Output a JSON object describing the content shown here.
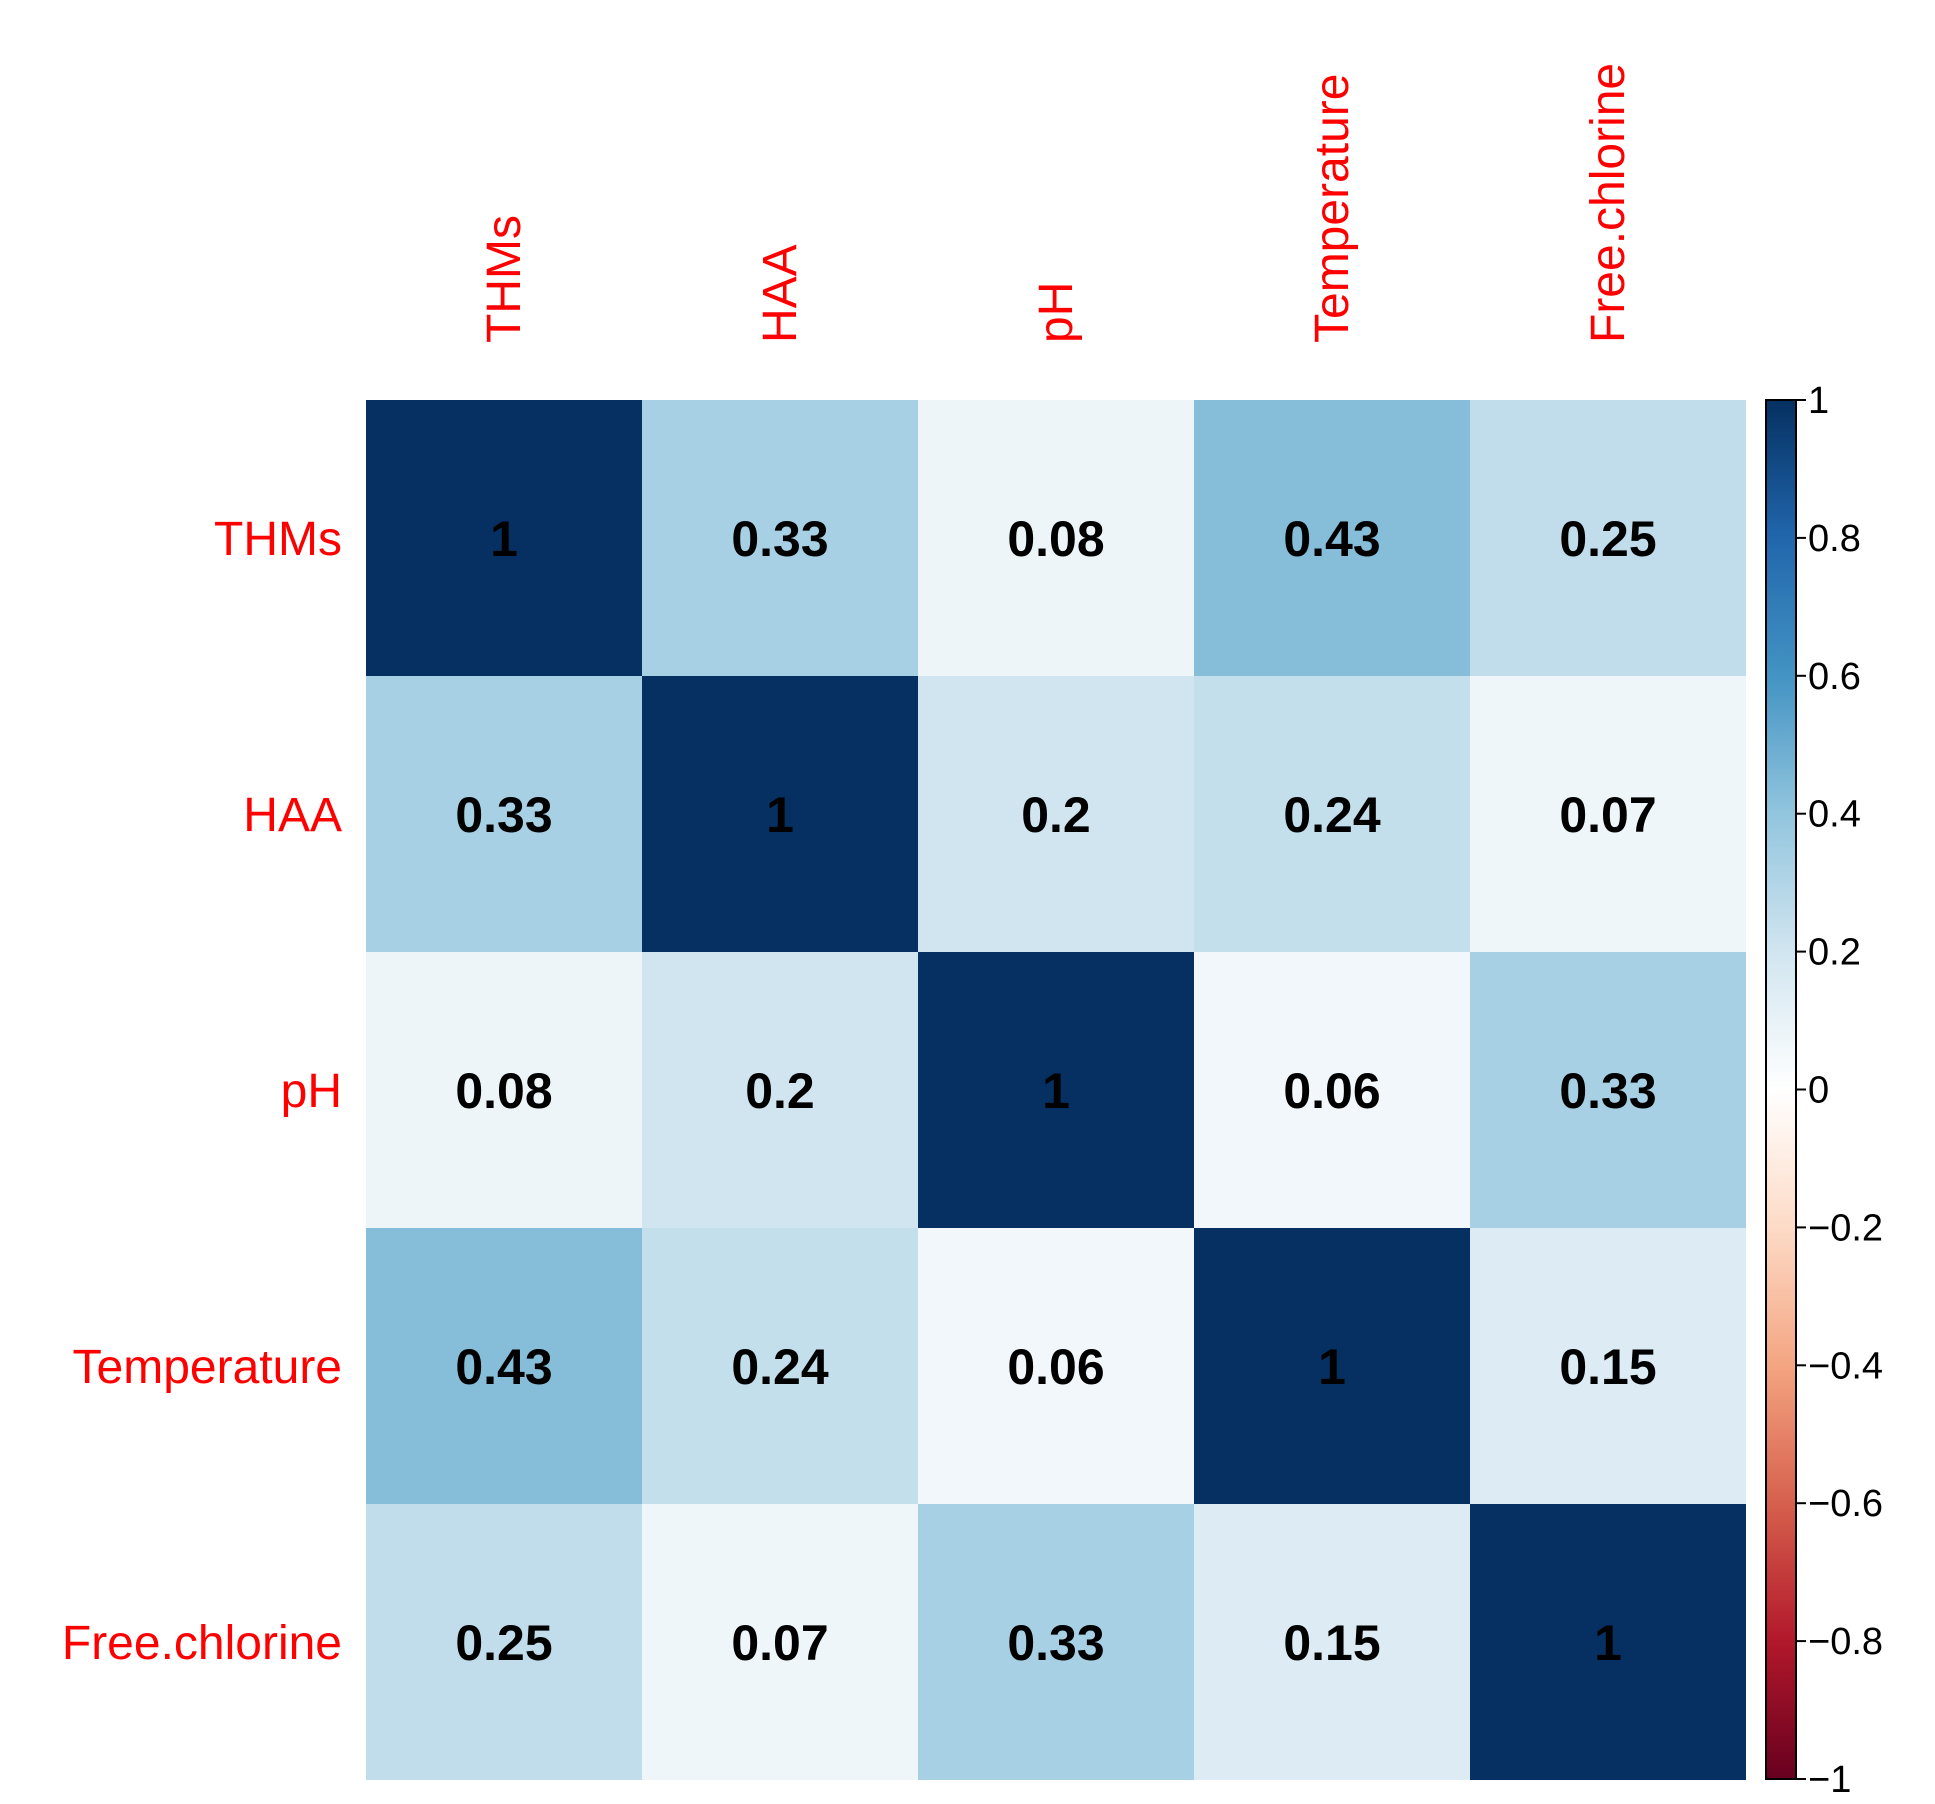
{
  "colors": {
    "label_text": "#FF0000",
    "cell_text": "#000000",
    "tick_text": "#000000",
    "scale": [
      "#67001F",
      "#B2182B",
      "#D6604D",
      "#F4A582",
      "#FDDBC7",
      "#FFFFFF",
      "#D1E5F0",
      "#92C5DE",
      "#4393C3",
      "#2166AC",
      "#053061"
    ]
  },
  "chart_data": {
    "type": "heatmap",
    "variables": [
      "THMs",
      "HAA",
      "pH",
      "Temperature",
      "Free.chlorine"
    ],
    "matrix": [
      [
        1,
        0.33,
        0.08,
        0.43,
        0.25
      ],
      [
        0.33,
        1,
        0.2,
        0.24,
        0.07
      ],
      [
        0.08,
        0.2,
        1,
        0.06,
        0.33
      ],
      [
        0.43,
        0.24,
        0.06,
        1,
        0.15
      ],
      [
        0.25,
        0.07,
        0.33,
        0.15,
        1
      ]
    ],
    "cell_labels": [
      [
        "1",
        "0.33",
        "0.08",
        "0.43",
        "0.25"
      ],
      [
        "0.33",
        "1",
        "0.2",
        "0.24",
        "0.07"
      ],
      [
        "0.08",
        "0.2",
        "1",
        "0.06",
        "0.33"
      ],
      [
        "0.43",
        "0.24",
        "0.06",
        "1",
        "0.15"
      ],
      [
        "0.25",
        "0.07",
        "0.33",
        "0.15",
        "1"
      ]
    ],
    "colorbar": {
      "range": [
        -1,
        1
      ],
      "ticks": [
        1,
        0.8,
        0.6,
        0.4,
        0.2,
        0,
        -0.2,
        -0.4,
        -0.6,
        -0.8,
        -1
      ],
      "tick_labels": [
        "1",
        "0.8",
        "0.6",
        "0.4",
        "0.2",
        "0",
        "−0.2",
        "−0.4",
        "−0.6",
        "−0.8",
        "−1"
      ]
    },
    "legend_placement": "right"
  }
}
